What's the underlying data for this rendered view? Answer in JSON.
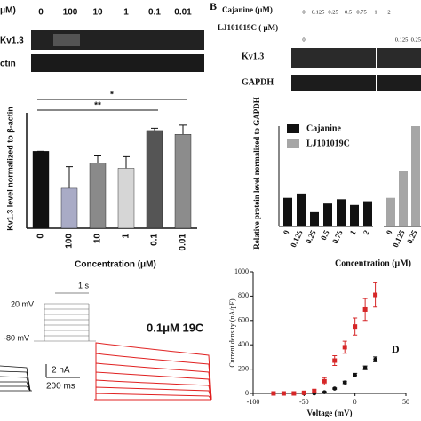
{
  "panel_labels": {
    "b": "B",
    "d": "D"
  },
  "panel_a": {
    "header": "μM)",
    "concentrations": [
      "0",
      "100",
      "10",
      "1",
      "0.1",
      "0.01"
    ],
    "blots": [
      "Kv1.3",
      "ctin"
    ]
  },
  "panel_b": {
    "rows": [
      {
        "label": "Cajanine (μM)",
        "values": [
          "0",
          "0.125",
          "0.25",
          "0.5",
          "0.75",
          "1",
          "2"
        ]
      },
      {
        "label": "LJ101019C ( μM)",
        "values": [
          "0",
          "0.125",
          "0.25"
        ]
      }
    ],
    "blots": [
      "Kv1.3",
      "GAPDH"
    ]
  },
  "panel_c": {
    "time_scale": "1 s",
    "voltages": [
      "20 mV",
      "-80 mV"
    ],
    "title": "0.1μM 19C",
    "scale_bars": [
      "2 nA",
      "200 ms"
    ]
  },
  "chart_data": [
    {
      "type": "bar",
      "y_label": "Kv1.3 level normalized to β-actin",
      "x_label": "Concentration (μM)",
      "categories": [
        "0",
        "100",
        "10",
        "1",
        "0.1",
        "0.01"
      ],
      "values": [
        100,
        52,
        85,
        78,
        127,
        122
      ],
      "errors": [
        0,
        28,
        9,
        15,
        3,
        12
      ],
      "colors": [
        "#111111",
        "#a9abc6",
        "#8a8a8a",
        "#d6d6d6",
        "#555555",
        "#8c8c8c"
      ],
      "ylim": [
        0,
        150
      ],
      "annotations": [
        "*",
        "**"
      ]
    },
    {
      "type": "grouped_bar",
      "y_label": "Relative protein level normalized to GAPDH",
      "x_label": "Concentration (μM)",
      "categories": [
        "0",
        "0.125",
        "0.25",
        "0.5",
        "0.75",
        "1",
        "2",
        "0",
        "0.125",
        "0.25"
      ],
      "series": [
        {
          "name": "Cajanine",
          "color": "#111111",
          "values": [
            100,
            115,
            50,
            80,
            95,
            75,
            88,
            null,
            null,
            null
          ]
        },
        {
          "name": "LJ101019C",
          "color": "#a6a6a6",
          "values": [
            null,
            null,
            null,
            null,
            null,
            null,
            null,
            100,
            195,
            350
          ]
        }
      ],
      "ylim": [
        0,
        350
      ]
    },
    {
      "type": "scatter",
      "x_label": "Voltage (mV)",
      "y_label": "Current density (nA/pF)",
      "xlim": [
        -100,
        50
      ],
      "xticks": [
        -100,
        -50,
        0,
        50
      ],
      "ylim": [
        0,
        1000
      ],
      "yticks": [
        0,
        200,
        400,
        600,
        800,
        1000
      ],
      "series": [
        {
          "color": "#111111",
          "marker": "circle",
          "x": [
            -80,
            -70,
            -60,
            -50,
            -40,
            -30,
            -20,
            -10,
            0,
            10,
            20
          ],
          "values": [
            0,
            0,
            0,
            0,
            0,
            10,
            40,
            90,
            150,
            210,
            280
          ],
          "errors": [
            0,
            0,
            0,
            0,
            0,
            5,
            5,
            10,
            15,
            15,
            20
          ]
        },
        {
          "color": "#d62728",
          "marker": "square",
          "x": [
            -80,
            -70,
            -60,
            -50,
            -40,
            -30,
            -20,
            -10,
            0,
            10,
            20
          ],
          "values": [
            0,
            0,
            0,
            5,
            20,
            100,
            270,
            380,
            550,
            690,
            810
          ],
          "errors": [
            0,
            0,
            0,
            5,
            10,
            30,
            40,
            50,
            70,
            90,
            100
          ]
        }
      ]
    }
  ]
}
